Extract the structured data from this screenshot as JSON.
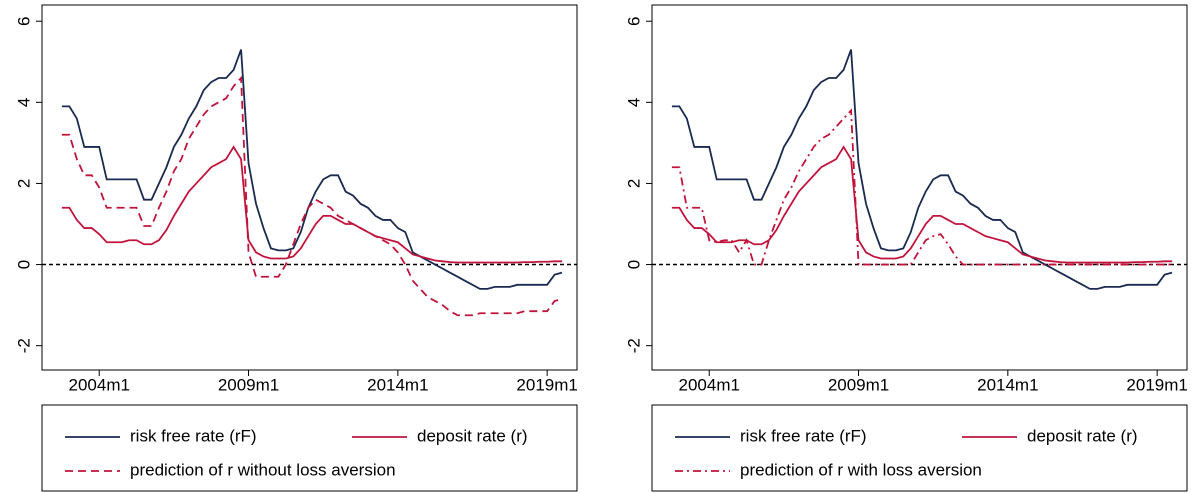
{
  "chart_data": [
    {
      "type": "line",
      "x": [
        "2002m10",
        "2003m1",
        "2003m4",
        "2003m7",
        "2003m10",
        "2004m1",
        "2004m4",
        "2004m7",
        "2004m10",
        "2005m1",
        "2005m4",
        "2005m7",
        "2005m10",
        "2006m1",
        "2006m4",
        "2006m7",
        "2006m10",
        "2007m1",
        "2007m4",
        "2007m7",
        "2007m10",
        "2008m1",
        "2008m4",
        "2008m7",
        "2008m10",
        "2009m1",
        "2009m4",
        "2009m7",
        "2009m10",
        "2010m1",
        "2010m4",
        "2010m7",
        "2010m10",
        "2011m1",
        "2011m4",
        "2011m7",
        "2011m10",
        "2012m1",
        "2012m4",
        "2012m7",
        "2012m10",
        "2013m1",
        "2013m4",
        "2013m7",
        "2013m10",
        "2014m1",
        "2014m4",
        "2014m7",
        "2014m10",
        "2015m1",
        "2015m4",
        "2015m7",
        "2015m10",
        "2016m1",
        "2016m4",
        "2016m7",
        "2016m10",
        "2017m1",
        "2017m4",
        "2017m7",
        "2017m10",
        "2018m1",
        "2018m4",
        "2018m7",
        "2018m10",
        "2019m1",
        "2019m4",
        "2019m7"
      ],
      "xlim": [
        "2002m2",
        "2020m1"
      ],
      "xticks": [
        "2004m1",
        "2009m1",
        "2014m1",
        "2019m1"
      ],
      "ylim": [
        -2.6,
        6.4
      ],
      "yticks": [
        -2,
        0,
        2,
        4,
        6
      ],
      "hline": 0,
      "legend": "bottom",
      "series": [
        {
          "name": "risk free rate (rF)",
          "color": "#1a2a50",
          "linestyle": "solid",
          "values": [
            3.9,
            3.9,
            3.6,
            2.9,
            2.9,
            2.9,
            2.1,
            2.1,
            2.1,
            2.1,
            2.1,
            1.6,
            1.6,
            2.0,
            2.4,
            2.9,
            3.2,
            3.6,
            3.9,
            4.3,
            4.5,
            4.6,
            4.6,
            4.8,
            5.3,
            2.5,
            1.5,
            0.9,
            0.4,
            0.35,
            0.35,
            0.4,
            0.8,
            1.4,
            1.8,
            2.1,
            2.2,
            2.2,
            1.8,
            1.7,
            1.5,
            1.4,
            1.2,
            1.1,
            1.1,
            0.9,
            0.8,
            0.3,
            0.2,
            0.1,
            0.0,
            -0.1,
            -0.2,
            -0.3,
            -0.4,
            -0.5,
            -0.6,
            -0.6,
            -0.55,
            -0.55,
            -0.55,
            -0.5,
            -0.5,
            -0.5,
            -0.5,
            -0.5,
            -0.25,
            -0.2
          ]
        },
        {
          "name": "deposit rate (r)",
          "color": "#c0143c",
          "linestyle": "solid",
          "values": [
            1.4,
            1.4,
            1.1,
            0.9,
            0.9,
            0.75,
            0.55,
            0.55,
            0.55,
            0.6,
            0.6,
            0.5,
            0.5,
            0.6,
            0.85,
            1.2,
            1.5,
            1.8,
            2.0,
            2.2,
            2.4,
            2.5,
            2.6,
            2.9,
            2.6,
            0.6,
            0.3,
            0.2,
            0.15,
            0.15,
            0.15,
            0.2,
            0.4,
            0.7,
            1.0,
            1.2,
            1.2,
            1.1,
            1.0,
            1.0,
            0.9,
            0.8,
            0.7,
            0.65,
            0.6,
            0.55,
            0.4,
            0.25,
            0.2,
            0.15,
            0.1,
            0.08,
            0.06,
            0.05,
            0.05,
            0.05,
            0.05,
            0.05,
            0.05,
            0.05,
            0.05,
            0.05,
            0.06,
            0.06,
            0.07,
            0.07,
            0.08,
            0.08
          ]
        },
        {
          "name": "prediction of r without loss aversion",
          "color": "#c0143c",
          "linestyle": "dashed",
          "values": [
            3.2,
            3.2,
            2.6,
            2.2,
            2.2,
            1.9,
            1.4,
            1.4,
            1.4,
            1.4,
            1.4,
            0.95,
            0.95,
            1.4,
            1.8,
            2.3,
            2.6,
            3.1,
            3.4,
            3.7,
            3.9,
            4.0,
            4.1,
            4.4,
            4.6,
            0.3,
            -0.3,
            -0.3,
            -0.3,
            -0.3,
            0.0,
            0.5,
            1.0,
            1.4,
            1.6,
            1.5,
            1.4,
            1.2,
            1.1,
            1.0,
            0.9,
            0.8,
            0.7,
            0.6,
            0.5,
            0.3,
            0.0,
            -0.4,
            -0.6,
            -0.8,
            -0.9,
            -1.0,
            -1.15,
            -1.25,
            -1.25,
            -1.25,
            -1.2,
            -1.2,
            -1.2,
            -1.2,
            -1.2,
            -1.2,
            -1.15,
            -1.15,
            -1.15,
            -1.15,
            -0.9,
            -0.85
          ]
        }
      ]
    },
    {
      "type": "line",
      "x": [
        "2002m10",
        "2003m1",
        "2003m4",
        "2003m7",
        "2003m10",
        "2004m1",
        "2004m4",
        "2004m7",
        "2004m10",
        "2005m1",
        "2005m4",
        "2005m7",
        "2005m10",
        "2006m1",
        "2006m4",
        "2006m7",
        "2006m10",
        "2007m1",
        "2007m4",
        "2007m7",
        "2007m10",
        "2008m1",
        "2008m4",
        "2008m7",
        "2008m10",
        "2009m1",
        "2009m4",
        "2009m7",
        "2009m10",
        "2010m1",
        "2010m4",
        "2010m7",
        "2010m10",
        "2011m1",
        "2011m4",
        "2011m7",
        "2011m10",
        "2012m1",
        "2012m4",
        "2012m7",
        "2012m10",
        "2013m1",
        "2013m4",
        "2013m7",
        "2013m10",
        "2014m1",
        "2014m4",
        "2014m7",
        "2014m10",
        "2015m1",
        "2015m4",
        "2015m7",
        "2015m10",
        "2016m1",
        "2016m4",
        "2016m7",
        "2016m10",
        "2017m1",
        "2017m4",
        "2017m7",
        "2017m10",
        "2018m1",
        "2018m4",
        "2018m7",
        "2018m10",
        "2019m1",
        "2019m4",
        "2019m7"
      ],
      "xlim": [
        "2002m2",
        "2020m1"
      ],
      "xticks": [
        "2004m1",
        "2009m1",
        "2014m1",
        "2019m1"
      ],
      "ylim": [
        -2.6,
        6.4
      ],
      "yticks": [
        -2,
        0,
        2,
        4,
        6
      ],
      "hline": 0,
      "legend": "bottom",
      "series": [
        {
          "name": "risk free rate (rF)",
          "color": "#1a2a50",
          "linestyle": "solid",
          "values": [
            3.9,
            3.9,
            3.6,
            2.9,
            2.9,
            2.9,
            2.1,
            2.1,
            2.1,
            2.1,
            2.1,
            1.6,
            1.6,
            2.0,
            2.4,
            2.9,
            3.2,
            3.6,
            3.9,
            4.3,
            4.5,
            4.6,
            4.6,
            4.8,
            5.3,
            2.5,
            1.5,
            0.9,
            0.4,
            0.35,
            0.35,
            0.4,
            0.8,
            1.4,
            1.8,
            2.1,
            2.2,
            2.2,
            1.8,
            1.7,
            1.5,
            1.4,
            1.2,
            1.1,
            1.1,
            0.9,
            0.8,
            0.3,
            0.2,
            0.1,
            0.0,
            -0.1,
            -0.2,
            -0.3,
            -0.4,
            -0.5,
            -0.6,
            -0.6,
            -0.55,
            -0.55,
            -0.55,
            -0.5,
            -0.5,
            -0.5,
            -0.5,
            -0.5,
            -0.25,
            -0.2
          ]
        },
        {
          "name": "deposit rate (r)",
          "color": "#c0143c",
          "linestyle": "solid",
          "values": [
            1.4,
            1.4,
            1.1,
            0.9,
            0.9,
            0.75,
            0.55,
            0.55,
            0.55,
            0.6,
            0.6,
            0.5,
            0.5,
            0.6,
            0.85,
            1.2,
            1.5,
            1.8,
            2.0,
            2.2,
            2.4,
            2.5,
            2.6,
            2.9,
            2.6,
            0.6,
            0.3,
            0.2,
            0.15,
            0.15,
            0.15,
            0.2,
            0.4,
            0.7,
            1.0,
            1.2,
            1.2,
            1.1,
            1.0,
            1.0,
            0.9,
            0.8,
            0.7,
            0.65,
            0.6,
            0.55,
            0.4,
            0.25,
            0.2,
            0.15,
            0.1,
            0.08,
            0.06,
            0.05,
            0.05,
            0.05,
            0.05,
            0.05,
            0.05,
            0.05,
            0.05,
            0.05,
            0.06,
            0.06,
            0.07,
            0.07,
            0.08,
            0.08
          ]
        },
        {
          "name": "prediction of r with loss aversion",
          "color": "#c0143c",
          "linestyle": "dashdot",
          "values": [
            2.4,
            2.4,
            1.4,
            1.4,
            1.4,
            0.6,
            0.55,
            0.6,
            0.6,
            0.3,
            0.6,
            0.0,
            0.0,
            0.6,
            1.1,
            1.6,
            1.9,
            2.3,
            2.6,
            2.9,
            3.1,
            3.2,
            3.4,
            3.6,
            3.8,
            0.0,
            0.0,
            0.0,
            0.0,
            0.0,
            0.0,
            0.0,
            0.0,
            0.3,
            0.6,
            0.7,
            0.75,
            0.5,
            0.2,
            0.0,
            0.0,
            0.0,
            0.0,
            0.0,
            0.0,
            0.0,
            0.0,
            0.0,
            0.0,
            0.0,
            0.0,
            0.0,
            0.0,
            0.0,
            0.0,
            0.0,
            0.0,
            0.0,
            0.0,
            0.0,
            0.0,
            0.0,
            0.0,
            0.0,
            0.0,
            0.0,
            0.0,
            0.0
          ]
        }
      ]
    }
  ]
}
